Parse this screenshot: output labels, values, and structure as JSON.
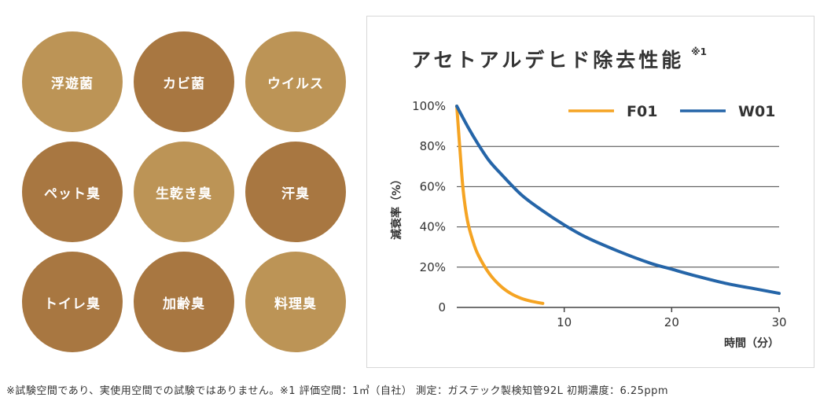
{
  "circles": [
    {
      "label": "浮遊菌",
      "tone": "light"
    },
    {
      "label": "カビ菌",
      "tone": "dark"
    },
    {
      "label": "ウイルス",
      "tone": "light"
    },
    {
      "label": "ペット臭",
      "tone": "dark"
    },
    {
      "label": "生乾き臭",
      "tone": "light"
    },
    {
      "label": "汗臭",
      "tone": "dark"
    },
    {
      "label": "トイレ臭",
      "tone": "dark"
    },
    {
      "label": "加齢臭",
      "tone": "dark"
    },
    {
      "label": "料理臭",
      "tone": "light"
    }
  ],
  "colors": {
    "circle_light": "#bc9456",
    "circle_dark": "#a87741",
    "f01": "#f5a423",
    "w01": "#2565a8",
    "grid": "#444444"
  },
  "chart_data": {
    "type": "line",
    "title": "アセトアルデヒド除去性能",
    "title_note": "※1",
    "xlabel": "時間（分）",
    "ylabel": "減衰率（%）",
    "xlim": [
      0,
      30
    ],
    "ylim": [
      0,
      100
    ],
    "x_ticks": [
      "10",
      "20",
      "30"
    ],
    "y_ticks": [
      "0",
      "20%",
      "40%",
      "60%",
      "80%",
      "100%"
    ],
    "legend_position": "top-right",
    "grid": "horizontal",
    "series": [
      {
        "name": "F01",
        "color": "#f5a423",
        "x": [
          0,
          0.3,
          0.6,
          1,
          1.5,
          2,
          3,
          4,
          5,
          6,
          7,
          8
        ],
        "y": [
          100,
          78,
          58,
          43,
          33,
          26,
          17,
          11,
          7,
          4.5,
          3,
          2
        ]
      },
      {
        "name": "W01",
        "color": "#2565a8",
        "x": [
          0,
          1,
          2,
          3,
          4,
          6,
          8,
          10,
          12,
          15,
          18,
          20,
          22,
          25,
          28,
          30
        ],
        "y": [
          100,
          90,
          81,
          73,
          67,
          56,
          48,
          41,
          35,
          28,
          22,
          19,
          16,
          12,
          9,
          7
        ]
      }
    ]
  },
  "footnote": "※試験空間であり、実使用空間での試験ではありません。※1 評価空間：1㎥（自社） 測定：ガステック製検知管92L 初期濃度：6.25ppm"
}
